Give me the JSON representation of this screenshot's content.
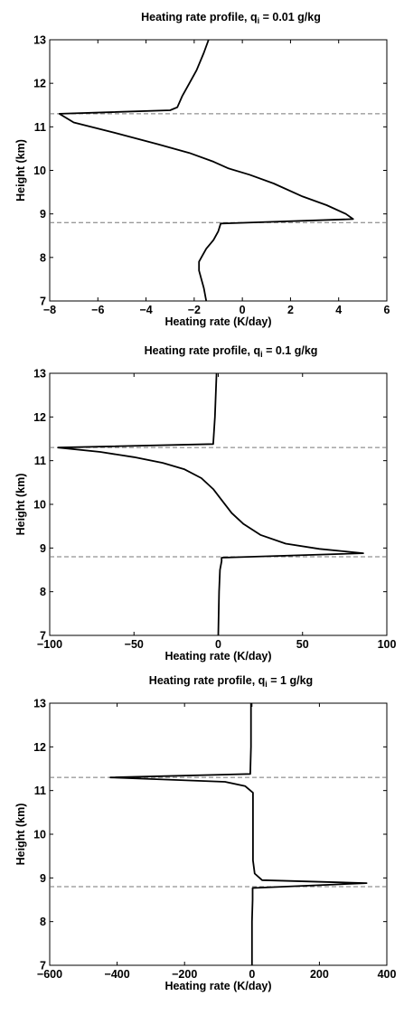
{
  "chart_data": [
    {
      "type": "line",
      "title_parts": {
        "main": "Heating rate profile, q",
        "sub": "i",
        "tail": " = 0.01 g/kg"
      },
      "xlabel": "Heating rate (K/day)",
      "ylabel": "Height (km)",
      "xlim": [
        -8,
        6
      ],
      "ylim": [
        7,
        13
      ],
      "xticks": [
        -8,
        -6,
        -4,
        -2,
        0,
        2,
        4,
        6
      ],
      "yticks": [
        7,
        8,
        9,
        10,
        11,
        12,
        13
      ],
      "xtick_labels": [
        "−8",
        "−6",
        "−4",
        "−2",
        "0",
        "2",
        "4",
        "6"
      ],
      "ytick_labels": [
        "7",
        "8",
        "9",
        "10",
        "11",
        "12",
        "13"
      ],
      "grid": false,
      "hlines": [
        11.3,
        8.8
      ],
      "series": [
        {
          "x": [
            -1.5,
            -1.6,
            -1.7,
            -1.8,
            -1.8,
            -1.7,
            -1.5,
            -1.2,
            -1.0,
            -0.9,
            4.6,
            4.3,
            3.5,
            2.5,
            1.3,
            0.3,
            -0.6,
            -1.2,
            -2.2,
            -3.5,
            -5.2,
            -7.0,
            -7.6,
            -3.0,
            -2.7,
            -2.5,
            -2.2,
            -1.9,
            -1.6,
            -1.4
          ],
          "y": [
            7.0,
            7.3,
            7.5,
            7.7,
            7.9,
            8.0,
            8.2,
            8.4,
            8.6,
            8.78,
            8.88,
            9.0,
            9.2,
            9.4,
            9.7,
            9.9,
            10.05,
            10.2,
            10.4,
            10.6,
            10.85,
            11.1,
            11.3,
            11.38,
            11.45,
            11.7,
            12.0,
            12.3,
            12.7,
            13.0
          ]
        }
      ]
    },
    {
      "type": "line",
      "title_parts": {
        "main": "Heating rate profile, q",
        "sub": "i",
        "tail": " = 0.1 g/kg"
      },
      "xlabel": "Heating rate (K/day)",
      "ylabel": "Height (km)",
      "xlim": [
        -100,
        100
      ],
      "ylim": [
        7,
        13
      ],
      "xticks": [
        -100,
        -50,
        0,
        50,
        100
      ],
      "yticks": [
        7,
        8,
        9,
        10,
        11,
        12,
        13
      ],
      "xtick_labels": [
        "−100",
        "−50",
        "0",
        "50",
        "100"
      ],
      "ytick_labels": [
        "7",
        "8",
        "9",
        "10",
        "11",
        "12",
        "13"
      ],
      "grid": false,
      "hlines": [
        11.3,
        8.8
      ],
      "series": [
        {
          "x": [
            0,
            0.5,
            1,
            2,
            2,
            86,
            60,
            40,
            25,
            15,
            8,
            2,
            -3,
            -10,
            -20,
            -33,
            -50,
            -70,
            -95,
            -3,
            -2,
            -1
          ],
          "y": [
            7.0,
            8.0,
            8.5,
            8.7,
            8.78,
            8.88,
            8.98,
            9.1,
            9.3,
            9.55,
            9.8,
            10.1,
            10.35,
            10.6,
            10.8,
            10.95,
            11.08,
            11.2,
            11.3,
            11.38,
            12.0,
            13.0
          ]
        }
      ]
    },
    {
      "type": "line",
      "title_parts": {
        "main": "Heating rate profile, q",
        "sub": "i",
        "tail": " = 1 g/kg"
      },
      "xlabel": "Heating rate (K/day)",
      "ylabel": "Height (km)",
      "xlim": [
        -600,
        400
      ],
      "ylim": [
        7,
        13
      ],
      "xticks": [
        -600,
        -400,
        -200,
        0,
        200,
        400
      ],
      "yticks": [
        7,
        8,
        9,
        10,
        11,
        12,
        13
      ],
      "xtick_labels": [
        "−600",
        "−400",
        "−200",
        "0",
        "200",
        "400"
      ],
      "ytick_labels": [
        "7",
        "8",
        "9",
        "10",
        "11",
        "12",
        "13"
      ],
      "grid": false,
      "hlines": [
        11.3,
        8.8
      ],
      "series": [
        {
          "x": [
            0,
            0,
            2,
            2,
            340,
            30,
            8,
            3,
            3,
            3,
            -20,
            -80,
            -420,
            -5,
            -3,
            -3
          ],
          "y": [
            7.0,
            8.0,
            8.5,
            8.77,
            8.88,
            8.95,
            9.1,
            9.4,
            10.0,
            10.95,
            11.1,
            11.2,
            11.3,
            11.38,
            12.0,
            13.0
          ]
        }
      ]
    }
  ]
}
